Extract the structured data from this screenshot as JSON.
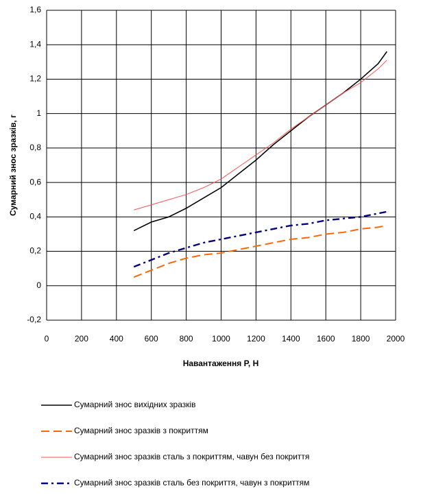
{
  "chart_data": {
    "type": "line",
    "xlabel": "Навантаження Р, Н",
    "ylabel": "Сумарний знос зразків, г",
    "x": [
      500,
      600,
      700,
      800,
      900,
      1000,
      1100,
      1200,
      1300,
      1400,
      1500,
      1600,
      1700,
      1800,
      1900,
      1950
    ],
    "series": [
      {
        "name": "Сумарний знос вихідних зразків",
        "color": "#000000",
        "style": "solid",
        "values": [
          0.32,
          0.37,
          0.4,
          0.45,
          0.51,
          0.57,
          0.65,
          0.73,
          0.82,
          0.9,
          0.98,
          1.05,
          1.12,
          1.2,
          1.29,
          1.36
        ]
      },
      {
        "name": "Сумарний знос зразків з покриттям",
        "color": "#ff6600",
        "style": "dashed",
        "values": [
          0.05,
          0.09,
          0.13,
          0.16,
          0.18,
          0.19,
          0.21,
          0.23,
          0.25,
          0.27,
          0.28,
          0.3,
          0.31,
          0.33,
          0.34,
          0.35
        ]
      },
      {
        "name": "Сумарний знос зразків сталь з покриттям, чавун без покриття",
        "color": "#ff5050",
        "style": "thin",
        "values": [
          0.44,
          0.47,
          0.5,
          0.53,
          0.57,
          0.62,
          0.69,
          0.76,
          0.83,
          0.91,
          0.98,
          1.05,
          1.12,
          1.18,
          1.26,
          1.31
        ]
      },
      {
        "name": "Сумарний знос зразків сталь без покриття, чавун з покриттям",
        "color": "#000080",
        "style": "dashdot",
        "values": [
          0.11,
          0.15,
          0.19,
          0.22,
          0.25,
          0.27,
          0.29,
          0.31,
          0.33,
          0.35,
          0.36,
          0.38,
          0.39,
          0.4,
          0.42,
          0.43
        ]
      }
    ],
    "xlim": [
      0,
      2000
    ],
    "xticks": [
      0,
      200,
      400,
      600,
      800,
      1000,
      1200,
      1400,
      1600,
      1800,
      2000
    ],
    "ylim": [
      -0.2,
      1.6
    ],
    "yticks": [
      {
        "value": -0.2,
        "label": "-0,2"
      },
      0,
      {
        "value": 0.2,
        "label": "0,2"
      },
      {
        "value": 0.4,
        "label": "0,4"
      },
      {
        "value": 0.6,
        "label": "0,6"
      },
      {
        "value": 0.8,
        "label": "0,8"
      },
      1,
      {
        "value": 1.2,
        "label": "1,2"
      },
      {
        "value": 1.4,
        "label": "1,4"
      },
      {
        "value": 1.6,
        "label": "1,6"
      }
    ],
    "grid": true,
    "legend": "bottom"
  }
}
